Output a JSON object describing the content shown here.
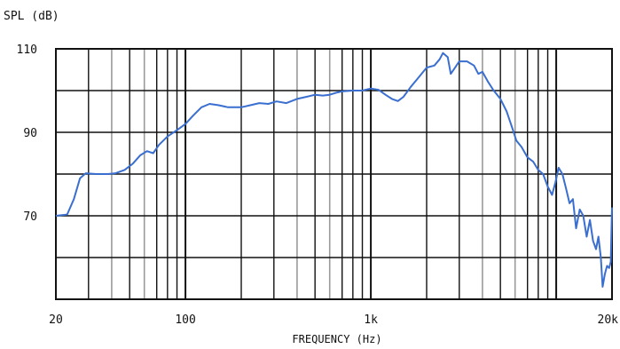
{
  "chart_data": {
    "type": "line",
    "title": "",
    "xlabel": "FREQUENCY (Hz)",
    "ylabel": "SPL (dB)",
    "x_scale": "log",
    "xlim": [
      20,
      20000
    ],
    "ylim": [
      50,
      110
    ],
    "x_tick_labels": [
      {
        "value": 20,
        "label": "20"
      },
      {
        "value": 100,
        "label": "100"
      },
      {
        "value": 1000,
        "label": "1k"
      },
      {
        "value": 20000,
        "label": "20k"
      }
    ],
    "y_tick_labels": [
      {
        "value": 110,
        "label": "110"
      },
      {
        "value": 90,
        "label": "90"
      },
      {
        "value": 70,
        "label": "70"
      }
    ],
    "grid": true,
    "series": [
      {
        "color": "#3a6fd0",
        "points": [
          [
            20,
            70
          ],
          [
            23,
            70.3
          ],
          [
            25,
            74
          ],
          [
            27,
            79
          ],
          [
            29,
            80.2
          ],
          [
            33,
            80
          ],
          [
            38,
            80
          ],
          [
            42,
            80.2
          ],
          [
            47,
            81
          ],
          [
            52,
            82.5
          ],
          [
            57,
            84.5
          ],
          [
            62,
            85.5
          ],
          [
            67,
            85
          ],
          [
            72,
            87
          ],
          [
            80,
            89
          ],
          [
            90,
            90.5
          ],
          [
            100,
            92
          ],
          [
            110,
            94
          ],
          [
            122,
            96
          ],
          [
            135,
            96.8
          ],
          [
            150,
            96.5
          ],
          [
            170,
            96
          ],
          [
            200,
            96
          ],
          [
            225,
            96.5
          ],
          [
            250,
            97
          ],
          [
            280,
            96.8
          ],
          [
            310,
            97.4
          ],
          [
            350,
            97
          ],
          [
            400,
            98
          ],
          [
            450,
            98.5
          ],
          [
            500,
            99
          ],
          [
            550,
            98.8
          ],
          [
            600,
            99
          ],
          [
            650,
            99.5
          ],
          [
            700,
            99.8
          ],
          [
            800,
            100
          ],
          [
            900,
            100
          ],
          [
            1000,
            100.5
          ],
          [
            1100,
            100.2
          ],
          [
            1200,
            99
          ],
          [
            1300,
            98
          ],
          [
            1400,
            97.5
          ],
          [
            1500,
            98.5
          ],
          [
            1650,
            101
          ],
          [
            1800,
            103
          ],
          [
            2000,
            105.5
          ],
          [
            2200,
            106
          ],
          [
            2350,
            107.5
          ],
          [
            2450,
            109
          ],
          [
            2600,
            108
          ],
          [
            2700,
            104
          ],
          [
            2850,
            105.5
          ],
          [
            3000,
            107
          ],
          [
            3300,
            107
          ],
          [
            3600,
            106
          ],
          [
            3800,
            104
          ],
          [
            4000,
            104.5
          ],
          [
            4300,
            102
          ],
          [
            4600,
            100
          ],
          [
            5000,
            98
          ],
          [
            5400,
            95
          ],
          [
            5800,
            91
          ],
          [
            6100,
            88
          ],
          [
            6500,
            86.5
          ],
          [
            7000,
            84
          ],
          [
            7500,
            83
          ],
          [
            8000,
            81
          ],
          [
            8500,
            80
          ],
          [
            9000,
            77
          ],
          [
            9500,
            75
          ],
          [
            9900,
            78
          ],
          [
            10300,
            81.5
          ],
          [
            10800,
            80
          ],
          [
            11300,
            76.5
          ],
          [
            11800,
            73
          ],
          [
            12300,
            74
          ],
          [
            12800,
            67
          ],
          [
            13400,
            71.5
          ],
          [
            14000,
            70
          ],
          [
            14600,
            65
          ],
          [
            15200,
            69
          ],
          [
            15800,
            64
          ],
          [
            16400,
            62
          ],
          [
            16900,
            65
          ],
          [
            17400,
            60
          ],
          [
            17800,
            53
          ],
          [
            18300,
            56
          ],
          [
            18800,
            58
          ],
          [
            19300,
            57.5
          ],
          [
            19700,
            59
          ],
          [
            20000,
            72
          ]
        ]
      }
    ]
  }
}
